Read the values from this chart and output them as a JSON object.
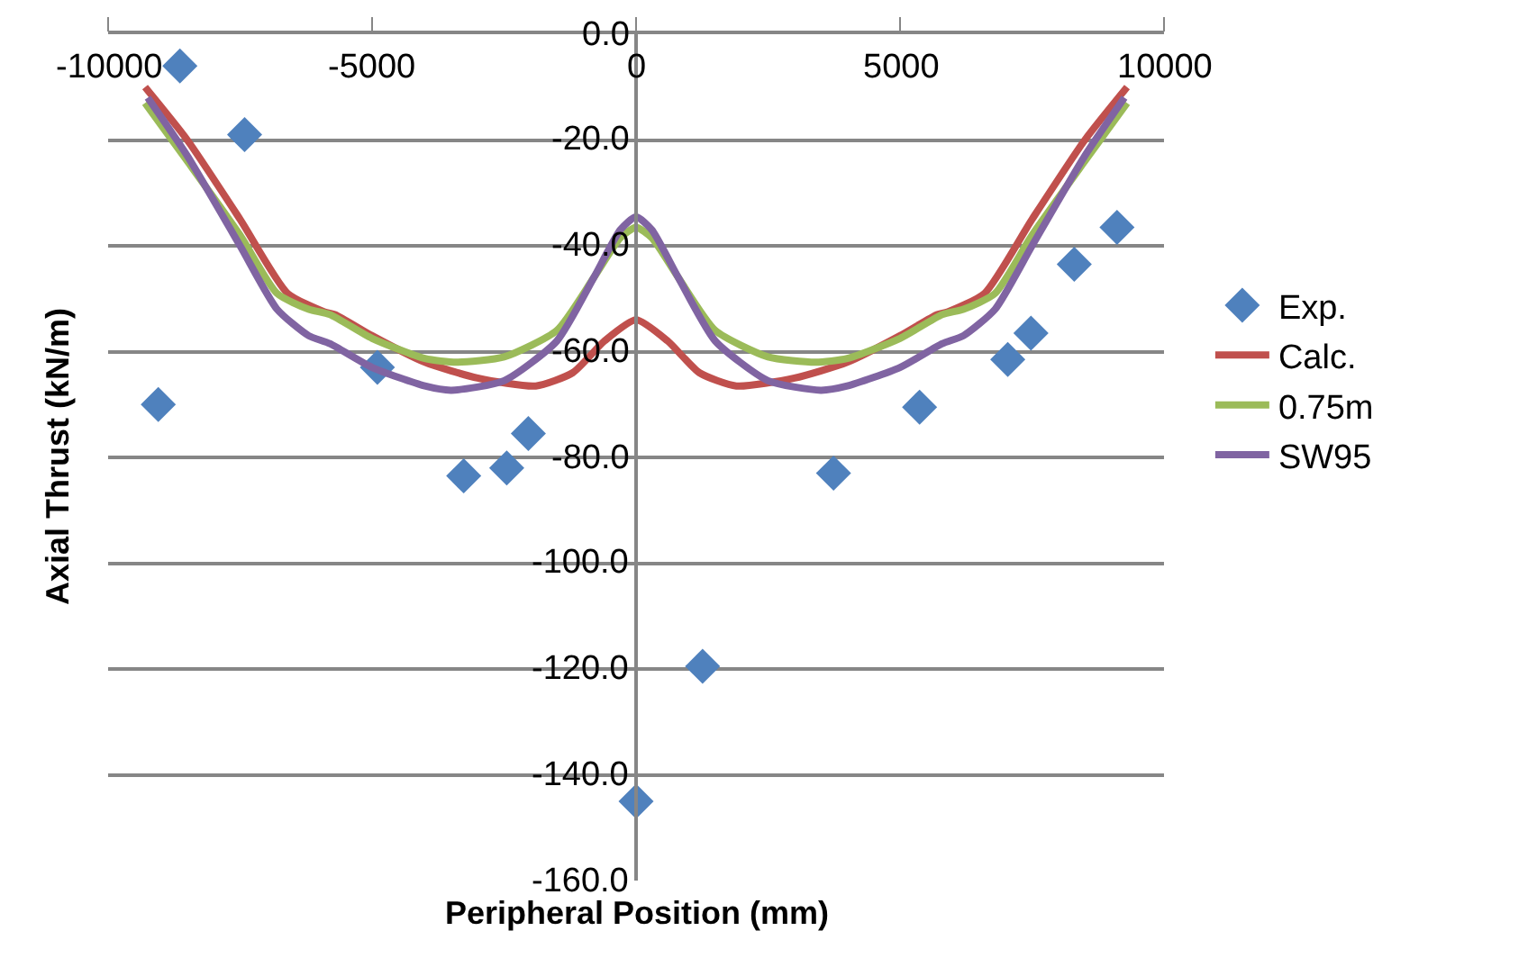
{
  "chart_data": {
    "type": "line",
    "xlabel": "Peripheral Position (mm)",
    "ylabel": "Axial Thrust (kN/m)",
    "xlim": [
      -10000,
      10000
    ],
    "xticks": [
      -10000,
      -5000,
      0,
      5000,
      10000
    ],
    "ylim": [
      -160,
      0
    ],
    "yticks": [
      {
        "value": 0,
        "label": "0.0"
      },
      {
        "value": -20,
        "label": "-20.0"
      },
      {
        "value": -40,
        "label": "-40.0"
      },
      {
        "value": -60,
        "label": "-60.0"
      },
      {
        "value": -80,
        "label": "-80.0"
      },
      {
        "value": -100,
        "label": "-100.0"
      },
      {
        "value": -120,
        "label": "-120.0"
      },
      {
        "value": -140,
        "label": "-140.0"
      },
      {
        "value": -160,
        "label": "-160.0"
      }
    ],
    "grid": "y",
    "legend": "right",
    "series": [
      {
        "name": "Exp.",
        "type": "scatter",
        "marker": "diamond",
        "color": "#4f81bd",
        "x": [
          -8640,
          -7415,
          -9050,
          -4900,
          -3265,
          -2450,
          -2040,
          0,
          1260,
          3740,
          5370,
          7040,
          7480,
          8300,
          9110
        ],
        "values": [
          -6,
          -19,
          -70,
          -63,
          -83.5,
          -82,
          -75.5,
          -145,
          -119.5,
          -83,
          -70.5,
          -61.5,
          -56.5,
          -43.5,
          -36.5
        ]
      },
      {
        "name": "Calc.",
        "marker": "none",
        "color": "#c0504d",
        "x": [
          -9300,
          -8500,
          -7500,
          -6600,
          -5900,
          -5700,
          -5000,
          -4000,
          -3000,
          -1900,
          -1200,
          -600,
          0,
          600,
          1200,
          1900,
          3000,
          4000,
          5000,
          5700,
          5900,
          6600,
          7500,
          8500,
          9300
        ],
        "values": [
          -10,
          -20,
          -35,
          -49,
          -52.5,
          -53,
          -57,
          -62,
          -65,
          -66.5,
          -64,
          -58,
          -54,
          -58,
          -64,
          -66.5,
          -65,
          -62,
          -57,
          -53,
          -52.5,
          -49,
          -35,
          -20,
          -10
        ]
      },
      {
        "name": "0.75m",
        "marker": "none",
        "color": "#9bbb59",
        "x": [
          -9300,
          -8500,
          -7500,
          -6800,
          -6200,
          -5800,
          -5000,
          -4000,
          -3400,
          -2500,
          -1500,
          -800,
          -300,
          0,
          300,
          800,
          1500,
          2500,
          3400,
          4000,
          5000,
          5800,
          6200,
          6800,
          7500,
          8500,
          9300
        ],
        "values": [
          -13,
          -24,
          -38,
          -49,
          -52,
          -53,
          -57.5,
          -61.3,
          -62,
          -61,
          -56,
          -46,
          -38.5,
          -36.5,
          -38.5,
          -46,
          -56,
          -61,
          -62,
          -61.3,
          -57.5,
          -53,
          -52,
          -49,
          -38,
          -24,
          -13
        ]
      },
      {
        "name": "SW95",
        "marker": "none",
        "color": "#8064a2",
        "x": [
          -9250,
          -8500,
          -7500,
          -6800,
          -6200,
          -5800,
          -5000,
          -4000,
          -3500,
          -2500,
          -1500,
          -800,
          -300,
          0,
          300,
          800,
          1500,
          2500,
          3500,
          4000,
          5000,
          5800,
          6200,
          6800,
          7500,
          8500,
          9250
        ],
        "values": [
          -12,
          -23,
          -40,
          -52,
          -57,
          -58.5,
          -63,
          -66.5,
          -67.3,
          -65.5,
          -58,
          -46,
          -37,
          -34.5,
          -37,
          -46,
          -58,
          -65.5,
          -67.3,
          -66.5,
          -63,
          -58.5,
          -57,
          -52,
          -40,
          -23,
          -12
        ]
      }
    ]
  }
}
